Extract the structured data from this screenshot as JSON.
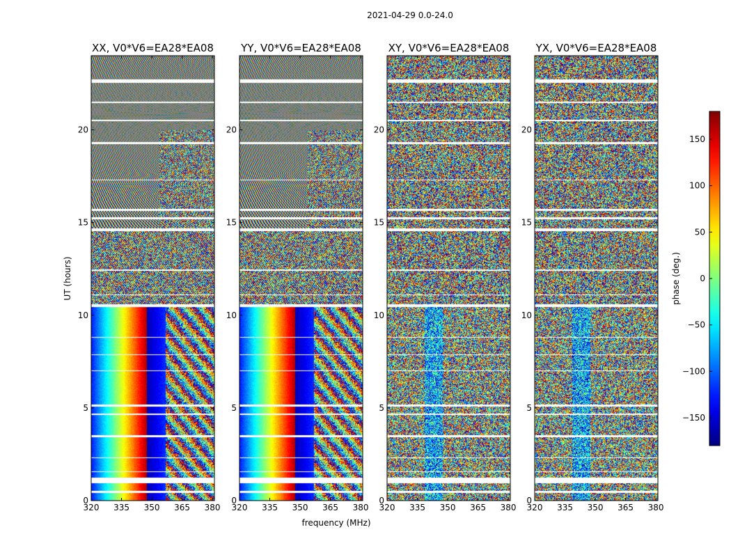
{
  "suptitle": "2021-04-29 0.0-24.0",
  "chart_data": [
    {
      "type": "heatmap",
      "title": "XX, V0*V6=EA28*EA08",
      "xlabel": "",
      "ylabel": "UT (hours)",
      "xlim": [
        320,
        381
      ],
      "ylim": [
        0,
        24
      ],
      "xticks": [
        320,
        335,
        350,
        365,
        380
      ],
      "yticks": [
        0,
        5,
        10,
        15,
        20
      ],
      "pattern": "smooth-fringes",
      "seed": 11
    },
    {
      "type": "heatmap",
      "title": "YY, V0*V6=EA28*EA08",
      "xlabel": "",
      "ylabel": "",
      "xlim": [
        320,
        381
      ],
      "ylim": [
        0,
        24
      ],
      "xticks": [
        320,
        335,
        350,
        365,
        380
      ],
      "yticks": [
        0,
        5,
        10,
        15,
        20
      ],
      "pattern": "smooth-fringes",
      "seed": 23
    },
    {
      "type": "heatmap",
      "title": "XY, V0*V6=EA28*EA08",
      "xlabel": "",
      "ylabel": "",
      "xlim": [
        320,
        381
      ],
      "ylim": [
        0,
        24
      ],
      "xticks": [
        320,
        335,
        350,
        365,
        380
      ],
      "yticks": [
        0,
        5,
        10,
        15,
        20
      ],
      "pattern": "noisy",
      "seed": 37
    },
    {
      "type": "heatmap",
      "title": "YX, V0*V6=EA28*EA08",
      "xlabel": "",
      "ylabel": "",
      "xlim": [
        320,
        381
      ],
      "ylim": [
        0,
        24
      ],
      "xticks": [
        320,
        335,
        350,
        365,
        380
      ],
      "yticks": [
        0,
        5,
        10,
        15,
        20
      ],
      "pattern": "noisy",
      "seed": 53
    }
  ],
  "shared_xlabel": "frequency (MHz)",
  "colorbar": {
    "label": "phase (deg.)",
    "min": -180,
    "max": 180,
    "ticks": [
      150,
      100,
      50,
      0,
      -50,
      -100,
      -150
    ],
    "tick_labels": [
      "150",
      "100",
      "50",
      "0",
      "−50",
      "−100",
      "−150"
    ],
    "colormap": "jet"
  },
  "flagged_ut_ranges": [
    [
      0.45,
      0.55
    ],
    [
      0.95,
      1.25
    ],
    [
      1.55,
      1.6
    ],
    [
      2.3,
      2.35
    ],
    [
      3.45,
      3.55
    ],
    [
      4.65,
      4.72
    ],
    [
      5.1,
      5.2
    ],
    [
      7.0,
      7.05
    ],
    [
      7.85,
      7.9
    ],
    [
      8.8,
      8.85
    ],
    [
      10.45,
      10.6
    ],
    [
      11.1,
      11.15
    ],
    [
      12.4,
      12.5
    ],
    [
      14.55,
      14.7
    ],
    [
      15.2,
      15.3
    ],
    [
      15.65,
      15.75
    ],
    [
      17.3,
      17.35
    ],
    [
      19.25,
      19.35
    ],
    [
      20.5,
      20.55
    ],
    [
      21.45,
      21.55
    ],
    [
      22.55,
      22.75
    ]
  ],
  "colors": {
    "frame": "#000000",
    "background": "#ffffff",
    "flag": "#ffffff"
  }
}
